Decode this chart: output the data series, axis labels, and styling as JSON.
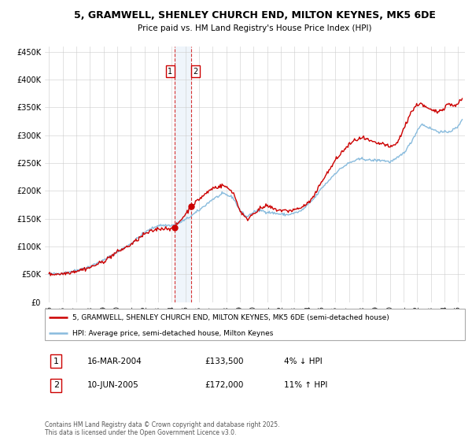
{
  "title": "5, GRAMWELL, SHENLEY CHURCH END, MILTON KEYNES, MK5 6DE",
  "subtitle": "Price paid vs. HM Land Registry's House Price Index (HPI)",
  "legend_line1": "5, GRAMWELL, SHENLEY CHURCH END, MILTON KEYNES, MK5 6DE (semi-detached house)",
  "legend_line2": "HPI: Average price, semi-detached house, Milton Keynes",
  "footer": "Contains HM Land Registry data © Crown copyright and database right 2025.\nThis data is licensed under the Open Government Licence v3.0.",
  "sale1_label": "1",
  "sale1_date": "16-MAR-2004",
  "sale1_price": "£133,500",
  "sale1_hpi": "4% ↓ HPI",
  "sale2_label": "2",
  "sale2_date": "10-JUN-2005",
  "sale2_price": "£172,000",
  "sale2_hpi": "11% ↑ HPI",
  "red_color": "#cc0000",
  "blue_color": "#88bbdd",
  "sale1_x": 2004.21,
  "sale1_y": 133500,
  "sale2_x": 2005.44,
  "sale2_y": 172000,
  "vline1_x": 2004.21,
  "vline2_x": 2005.44,
  "ylim": [
    0,
    460000
  ],
  "xlim_start": 1994.7,
  "xlim_end": 2025.5,
  "yticks": [
    0,
    50000,
    100000,
    150000,
    200000,
    250000,
    300000,
    350000,
    400000,
    450000
  ],
  "xticks": [
    1995,
    1996,
    1997,
    1998,
    1999,
    2000,
    2001,
    2002,
    2003,
    2004,
    2005,
    2006,
    2007,
    2008,
    2009,
    2010,
    2011,
    2012,
    2013,
    2014,
    2015,
    2016,
    2017,
    2018,
    2019,
    2020,
    2021,
    2022,
    2023,
    2024,
    2025
  ]
}
